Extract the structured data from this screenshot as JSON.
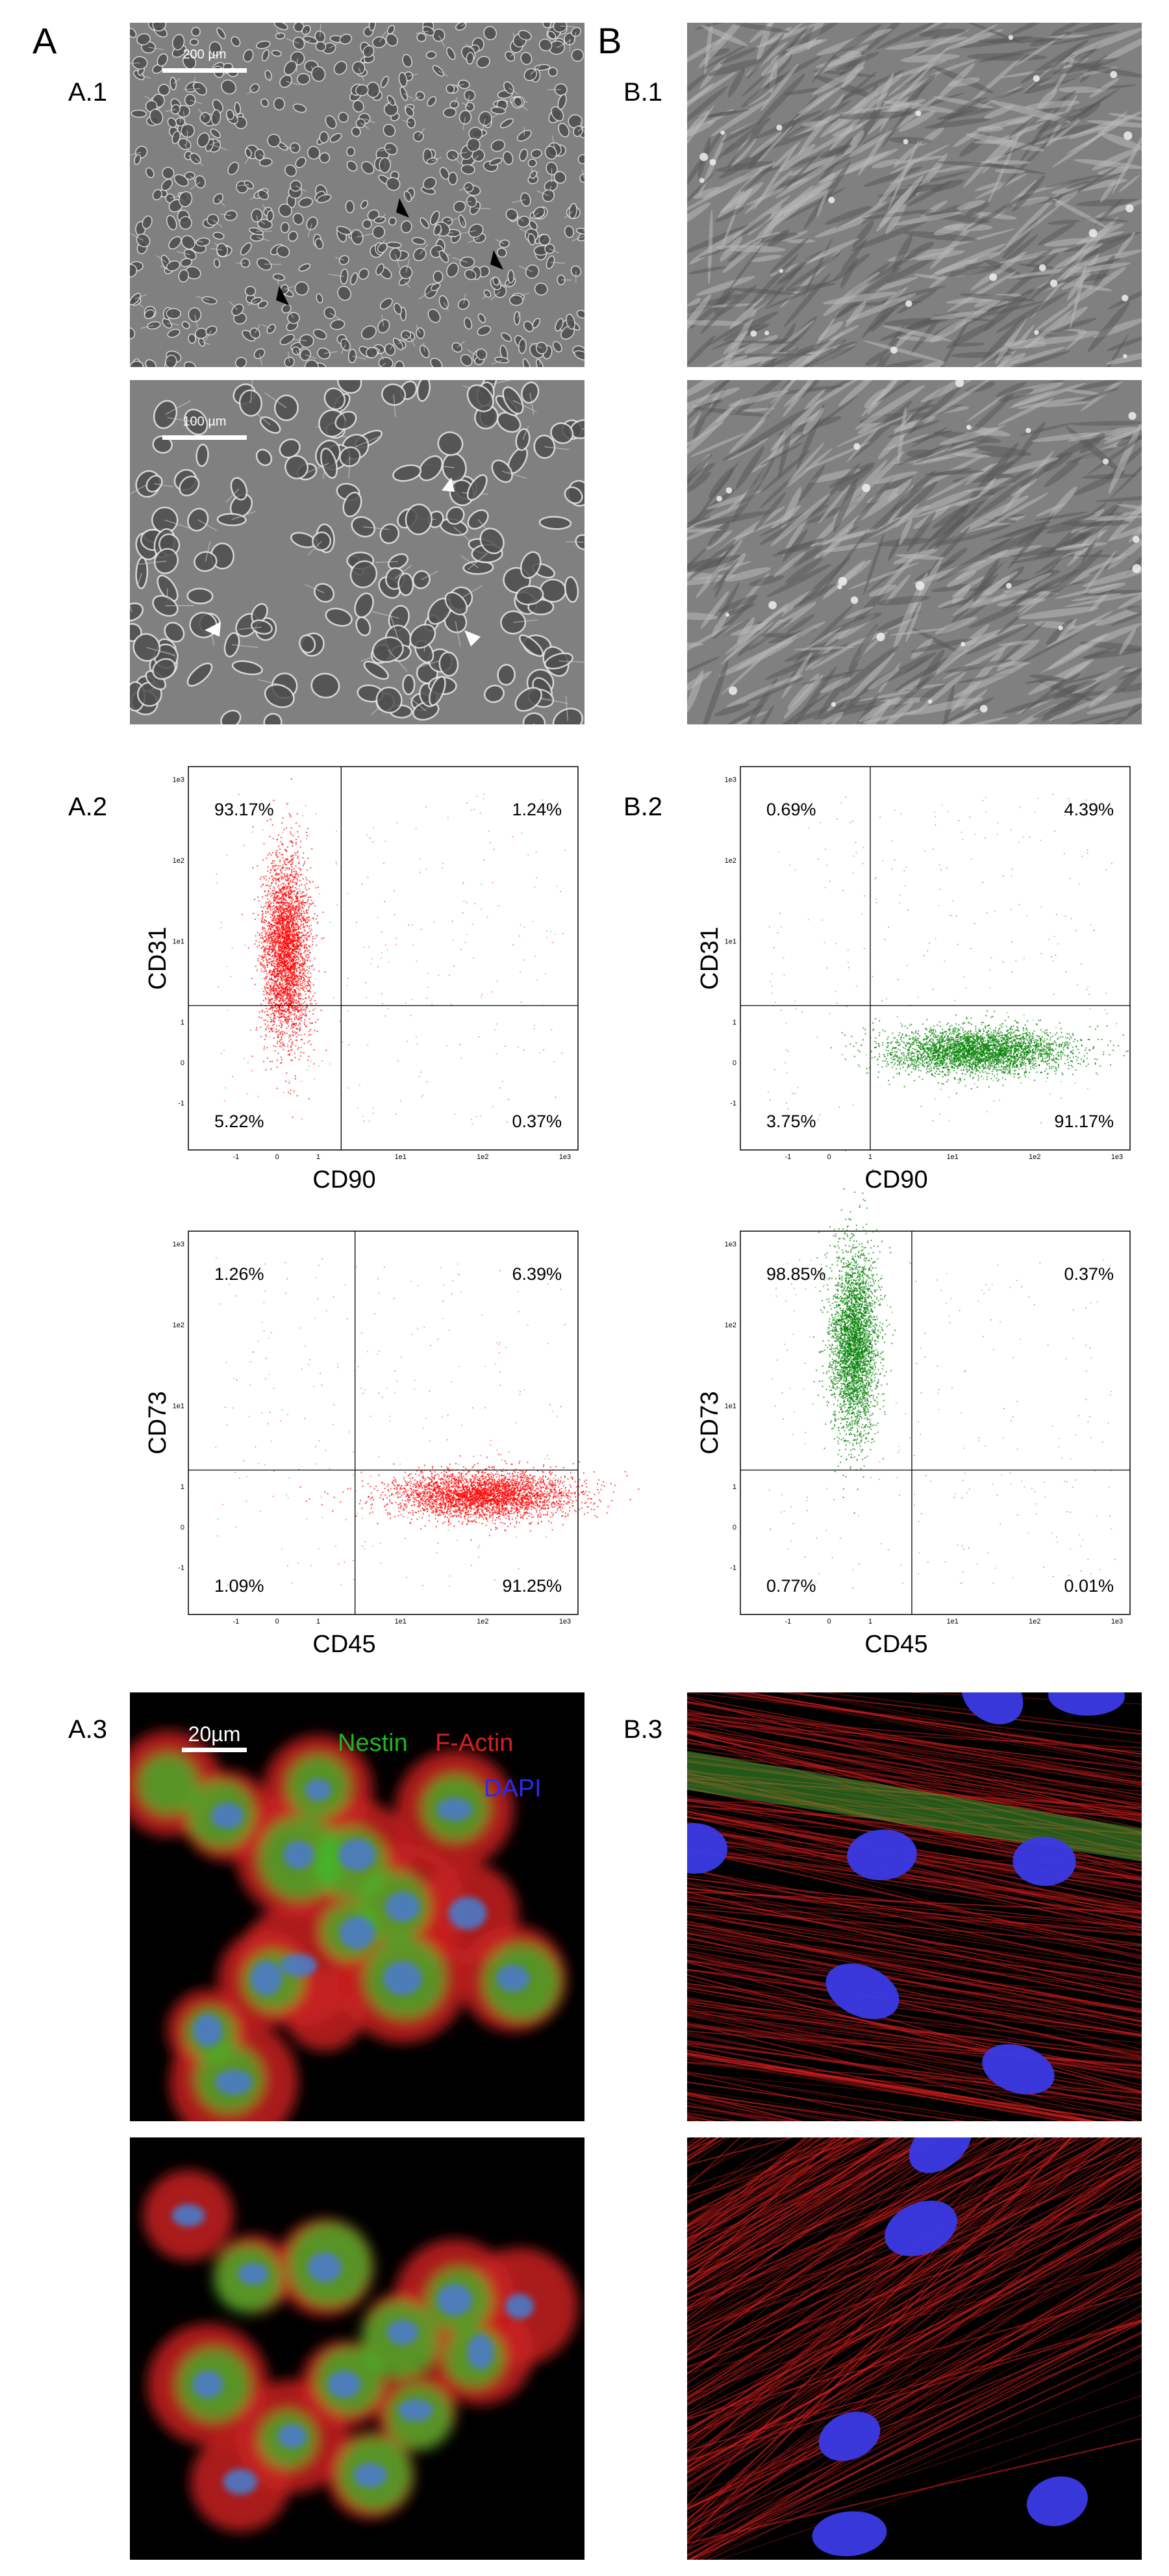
{
  "figure": {
    "panels": [
      {
        "id": "A",
        "label": "A"
      },
      {
        "id": "B",
        "label": "B"
      }
    ],
    "sublabels": {
      "a1": "A.1",
      "a2": "A.2",
      "a3": "A.3",
      "b1": "B.1",
      "b2": "B.2",
      "b3": "B.3"
    },
    "scalebars": {
      "a1_top": "200 µm",
      "a1_bottom": "100 µm",
      "a3_top": "20µm"
    },
    "stain_legend": {
      "nestin": "Nestin",
      "factin": "F-Actin",
      "dapi": "DAPI",
      "colors": {
        "nestin": "#1fb61f",
        "factin": "#d42020",
        "dapi": "#2020e0"
      }
    }
  },
  "chart_data": [
    {
      "id": "A2-top",
      "type": "scatter",
      "xlabel": "CD90",
      "ylabel": "CD31",
      "axis_ticks": [
        "-1",
        "0",
        "1",
        "1e1",
        "1e2",
        "1e3"
      ],
      "quadrants": {
        "upper_left": "93.17%",
        "upper_right": "1.24%",
        "lower_left": "5.22%",
        "lower_right": "0.37%"
      },
      "population": {
        "color": "#ff0000",
        "center": [
          0.2,
          8
        ],
        "axis": "y"
      }
    },
    {
      "id": "B2-top",
      "type": "scatter",
      "xlabel": "CD90",
      "ylabel": "CD31",
      "axis_ticks": [
        "-1",
        "0",
        "1",
        "1e1",
        "1e2",
        "1e3"
      ],
      "quadrants": {
        "upper_left": "0.69%",
        "upper_right": "4.39%",
        "lower_left": "3.75%",
        "lower_right": "91.17%"
      },
      "population": {
        "color": "#008000",
        "center": [
          20,
          0.3
        ],
        "axis": "x"
      }
    },
    {
      "id": "A2-bottom",
      "type": "scatter",
      "xlabel": "CD45",
      "ylabel": "CD73",
      "axis_ticks": [
        "-1",
        "0",
        "1",
        "1e1",
        "1e2",
        "1e3"
      ],
      "quadrants": {
        "upper_left": "1.26%",
        "upper_right": "6.39%",
        "lower_left": "1.09%",
        "lower_right": "91.25%"
      },
      "population": {
        "color": "#ff0000",
        "center": [
          100,
          0.8
        ],
        "axis": "x"
      }
    },
    {
      "id": "B2-bottom",
      "type": "scatter",
      "xlabel": "CD45",
      "ylabel": "CD73",
      "axis_ticks": [
        "-1",
        "0",
        "1",
        "1e1",
        "1e2",
        "1e3"
      ],
      "quadrants": {
        "upper_left": "98.85%",
        "upper_right": "0.37%",
        "lower_left": "0.77%",
        "lower_right": "0.01%"
      },
      "population": {
        "color": "#008000",
        "center": [
          0.6,
          60
        ],
        "axis": "y"
      }
    }
  ]
}
